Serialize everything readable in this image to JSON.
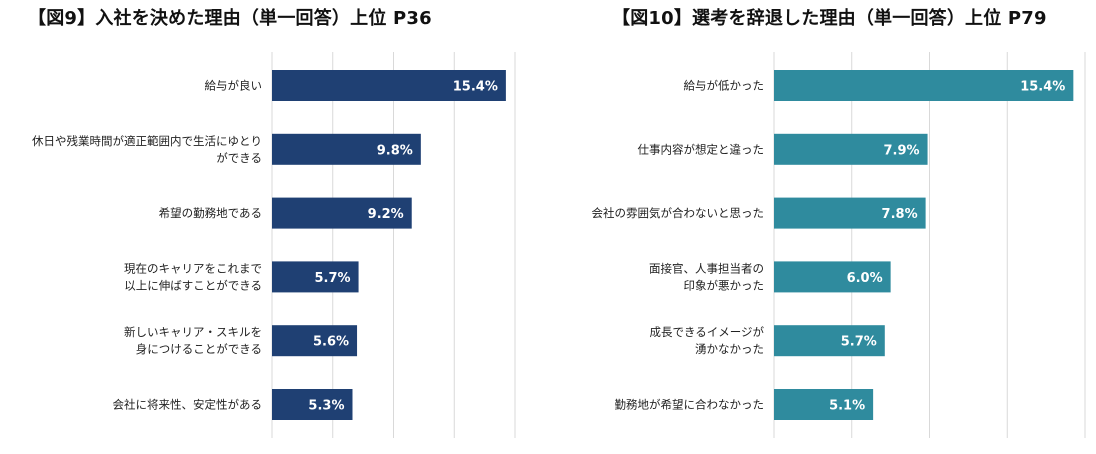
{
  "chart_data": [
    {
      "type": "bar",
      "orientation": "horizontal",
      "title": "【図9】入社を決めた理由（単一回答）上位 P36",
      "categories": [
        [
          "給与が良い"
        ],
        [
          "休日や残業時間が適正範囲内で生活にゆとり",
          "ができる"
        ],
        [
          "希望の勤務地である"
        ],
        [
          "現在のキャリアをこれまで",
          "以上に伸ばすことができる"
        ],
        [
          "新しいキャリア・スキルを",
          "身につけることができる"
        ],
        [
          "会社に将来性、安定性がある"
        ]
      ],
      "values": [
        15.4,
        9.8,
        9.2,
        5.7,
        5.6,
        5.3
      ],
      "value_labels": [
        "15.4%",
        "9.8%",
        "9.2%",
        "5.7%",
        "5.6%",
        "5.3%"
      ],
      "xlim": [
        0,
        16
      ],
      "grid": true,
      "color": "#1f4073"
    },
    {
      "type": "bar",
      "orientation": "horizontal",
      "title": "【図10】選考を辞退した理由（単一回答）上位 P79",
      "categories": [
        [
          "給与が低かった"
        ],
        [
          "仕事内容が想定と違った"
        ],
        [
          "会社の雰囲気が合わないと思った"
        ],
        [
          "面接官、人事担当者の",
          "印象が悪かった"
        ],
        [
          "成長できるイメージが",
          "湧かなかった"
        ],
        [
          "勤務地が希望に合わなかった"
        ]
      ],
      "values": [
        15.4,
        7.9,
        7.8,
        6.0,
        5.7,
        5.1
      ],
      "value_labels": [
        "15.4%",
        "7.9%",
        "7.8%",
        "6.0%",
        "5.7%",
        "5.1%"
      ],
      "xlim": [
        0,
        16
      ],
      "grid": true,
      "color": "#2f8b9e"
    }
  ]
}
